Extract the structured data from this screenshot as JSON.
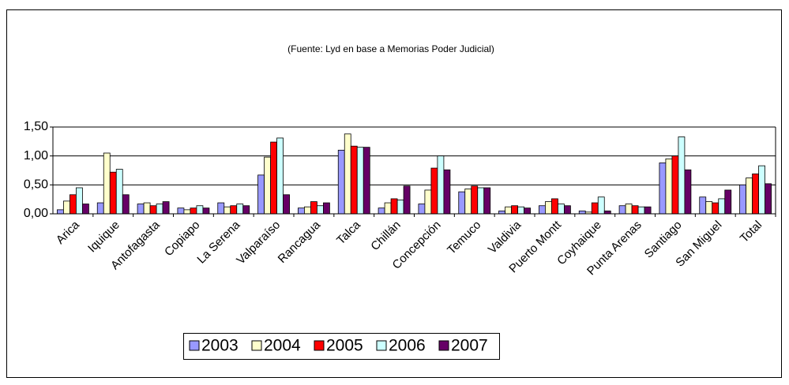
{
  "chart_data": {
    "type": "bar",
    "title": "(Fuente: Lyd en base a Memorias Poder Judicial)",
    "categories": [
      "Arica",
      "Iquique",
      "Antofagasta",
      "Copiapo",
      "La Serena",
      "Valparaíso",
      "Rancagua",
      "Talca",
      "Chillán",
      "Concepción",
      "Temuco",
      "Valdivia",
      "Puerto Montt",
      "Coyhaique",
      "Punta Arenas",
      "Santiago",
      "San Miguel",
      "Total"
    ],
    "series": [
      {
        "name": "2003",
        "color": "#9999ff",
        "values": [
          0.07,
          0.19,
          0.17,
          0.1,
          0.19,
          0.67,
          0.1,
          1.1,
          0.1,
          0.17,
          0.38,
          0.05,
          0.14,
          0.05,
          0.14,
          0.88,
          0.29,
          0.5
        ]
      },
      {
        "name": "2004",
        "color": "#ffffcc",
        "values": [
          0.22,
          1.05,
          0.19,
          0.07,
          0.12,
          0.98,
          0.12,
          1.38,
          0.19,
          0.41,
          0.43,
          0.12,
          0.21,
          0.03,
          0.17,
          0.95,
          0.21,
          0.62
        ]
      },
      {
        "name": "2005",
        "color": "#ff0000",
        "values": [
          0.33,
          0.72,
          0.14,
          0.1,
          0.14,
          1.24,
          0.21,
          1.17,
          0.26,
          0.79,
          0.48,
          0.14,
          0.26,
          0.19,
          0.14,
          1.0,
          0.19,
          0.69
        ]
      },
      {
        "name": "2006",
        "color": "#ccffff",
        "values": [
          0.45,
          0.77,
          0.17,
          0.14,
          0.17,
          1.31,
          0.14,
          1.15,
          0.24,
          1.0,
          0.45,
          0.12,
          0.17,
          0.29,
          0.12,
          1.33,
          0.26,
          0.83
        ]
      },
      {
        "name": "2007",
        "color": "#660066",
        "values": [
          0.17,
          0.33,
          0.21,
          0.1,
          0.14,
          0.33,
          0.19,
          1.15,
          0.48,
          0.76,
          0.45,
          0.1,
          0.14,
          0.05,
          0.12,
          0.76,
          0.41,
          0.52
        ]
      }
    ],
    "ylim": [
      0,
      1.5
    ],
    "yticks": [
      {
        "value": 0,
        "label": "0,00"
      },
      {
        "value": 0.5,
        "label": "0,50"
      },
      {
        "value": 1,
        "label": "1,00"
      },
      {
        "value": 1.5,
        "label": "1,50"
      }
    ],
    "grid": true
  }
}
